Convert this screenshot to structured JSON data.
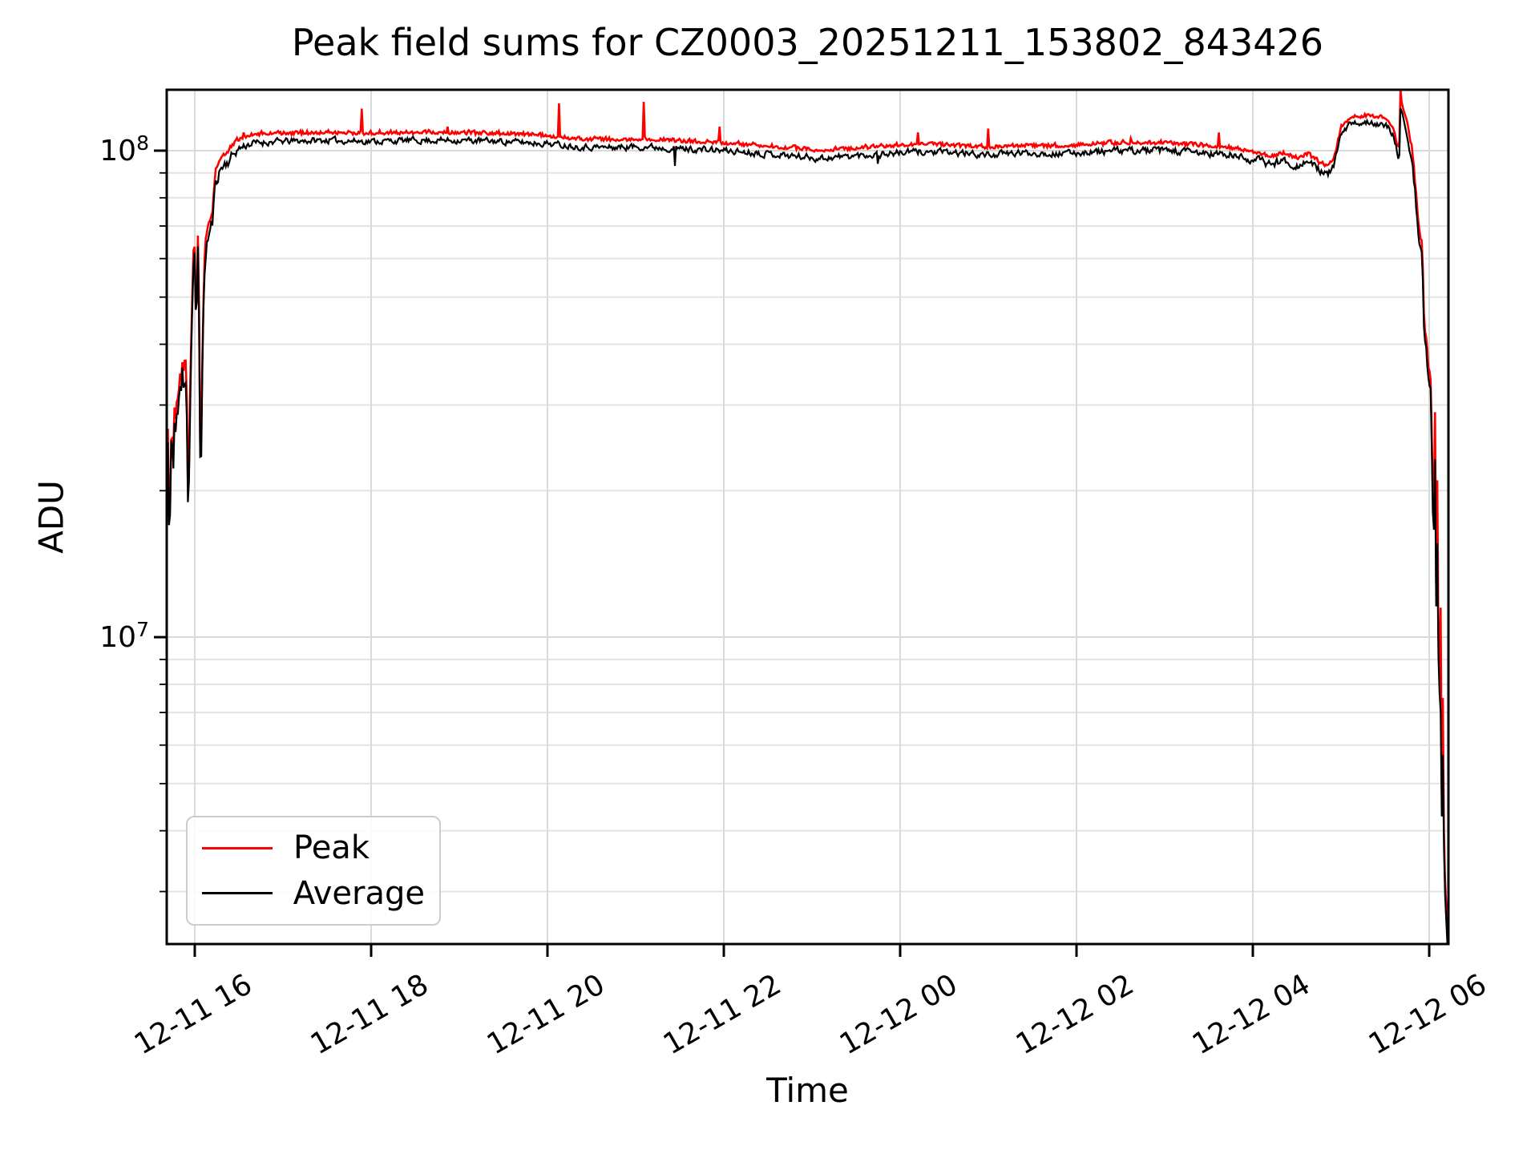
{
  "figure": {
    "title": "Peak field sums for CZ0003_20251211_153802_843426"
  },
  "chart_data": {
    "type": "line",
    "title": "Peak field sums for CZ0003_20251211_153802_843426",
    "xlabel": "Time",
    "ylabel": "ADU",
    "y_scale": "log",
    "grid": "both",
    "x_unit_hours_since": "12-11 16:00",
    "xlim": [
      -0.318,
      14.218
    ],
    "ylim": [
      2340000,
      133400000
    ],
    "x_ticks": [
      {
        "t": 0,
        "label": "12-11 16"
      },
      {
        "t": 2,
        "label": "12-11 18"
      },
      {
        "t": 4,
        "label": "12-11 20"
      },
      {
        "t": 6,
        "label": "12-11 22"
      },
      {
        "t": 8,
        "label": "12-12 00"
      },
      {
        "t": 10,
        "label": "12-12 02"
      },
      {
        "t": 12,
        "label": "12-12 04"
      },
      {
        "t": 14,
        "label": "12-12 06"
      }
    ],
    "y_major_ticks": [
      {
        "value": 10000000.0,
        "base": "10",
        "exp": "7"
      },
      {
        "value": 100000000.0,
        "base": "10",
        "exp": "8"
      }
    ],
    "y_minor_subs": [
      2,
      3,
      4,
      5,
      6,
      7,
      8,
      9
    ],
    "colors": {
      "grid_major": "#d9d9d9",
      "grid_minor": "#e3e3e3",
      "axes": "#000000"
    },
    "legend": {
      "location": "lower left",
      "entries": [
        {
          "name": "Peak",
          "color": "#ff0000"
        },
        {
          "name": "Average",
          "color": "#000000"
        }
      ]
    },
    "baseline_keyframes": [
      [
        -0.318,
        21000000.0
      ],
      [
        -0.3,
        27000000.0
      ],
      [
        -0.292,
        16000000.0
      ],
      [
        -0.285,
        13500000.0
      ],
      [
        -0.275,
        23000000.0
      ],
      [
        -0.26,
        25500000.0
      ],
      [
        -0.245,
        22000000.0
      ],
      [
        -0.23,
        28000000.0
      ],
      [
        -0.215,
        26000000.0
      ],
      [
        -0.2,
        30000000.0
      ],
      [
        -0.185,
        28000000.0
      ],
      [
        -0.17,
        33000000.0
      ],
      [
        -0.155,
        31000000.0
      ],
      [
        -0.14,
        35000000.0
      ],
      [
        -0.125,
        33000000.0
      ],
      [
        -0.11,
        36000000.0
      ],
      [
        -0.095,
        34000000.0
      ],
      [
        -0.085,
        25000000.0
      ],
      [
        -0.072,
        16000000.0
      ],
      [
        -0.06,
        26000000.0
      ],
      [
        -0.045,
        36000000.0
      ],
      [
        -0.03,
        46000000.0
      ],
      [
        -0.018,
        56000000.0
      ],
      [
        -0.008,
        63500000.0
      ],
      [
        0.004,
        56000000.0
      ],
      [
        0.014,
        40000000.0
      ],
      [
        0.022,
        44000000.0
      ],
      [
        0.03,
        59000000.0
      ],
      [
        0.038,
        65000000.0
      ],
      [
        0.048,
        46000000.0
      ],
      [
        0.058,
        26000000.0
      ],
      [
        0.068,
        20000000.0
      ],
      [
        0.08,
        31000000.0
      ],
      [
        0.095,
        43000000.0
      ],
      [
        0.11,
        55000000.0
      ],
      [
        0.125,
        62000000.0
      ],
      [
        0.14,
        65000000.0
      ],
      [
        0.16,
        67000000.0
      ],
      [
        0.18,
        69000000.0
      ],
      [
        0.2,
        71000000.0
      ],
      [
        0.22,
        79000000.0
      ],
      [
        0.235,
        86000000.0
      ],
      [
        0.26,
        89000000.0
      ],
      [
        0.29,
        91500000.0
      ],
      [
        0.33,
        93500000.0
      ],
      [
        0.38,
        95000000.0
      ],
      [
        0.43,
        98000000.0
      ],
      [
        0.5,
        101000000.0
      ],
      [
        0.6,
        103000000.0
      ],
      [
        0.75,
        104000000.0
      ],
      [
        1.0,
        104500000.0
      ],
      [
        1.5,
        105000000.0
      ],
      [
        2.0,
        104500000.0
      ],
      [
        2.5,
        105000000.0
      ],
      [
        3.0,
        105000000.0
      ],
      [
        3.5,
        104500000.0
      ],
      [
        4.0,
        103500000.0
      ],
      [
        4.35,
        102000000.0
      ],
      [
        4.7,
        101500000.0
      ],
      [
        5.1,
        102000000.0
      ],
      [
        5.5,
        101000000.0
      ],
      [
        6.0,
        100000000.0
      ],
      [
        6.4,
        99000000.0
      ],
      [
        6.8,
        97500000.0
      ],
      [
        7.1,
        96500000.0
      ],
      [
        7.45,
        97500000.0
      ],
      [
        7.8,
        98500000.0
      ],
      [
        8.2,
        99500000.0
      ],
      [
        8.6,
        99000000.0
      ],
      [
        9.0,
        98000000.0
      ],
      [
        9.4,
        99000000.0
      ],
      [
        9.8,
        98500000.0
      ],
      [
        10.2,
        99500000.0
      ],
      [
        10.6,
        100000000.0
      ],
      [
        11.0,
        100000000.0
      ],
      [
        11.35,
        99000000.0
      ],
      [
        11.7,
        98000000.0
      ],
      [
        12.0,
        96000000.0
      ],
      [
        12.2,
        94000000.0
      ],
      [
        12.35,
        95500000.0
      ],
      [
        12.5,
        93000000.0
      ],
      [
        12.62,
        95000000.0
      ],
      [
        12.75,
        91500000.0
      ],
      [
        12.85,
        89000000.0
      ],
      [
        12.92,
        93000000.0
      ],
      [
        13.0,
        108000000.0
      ],
      [
        13.1,
        113000000.0
      ],
      [
        13.22,
        114000000.0
      ],
      [
        13.32,
        115000000.0
      ],
      [
        13.42,
        113500000.0
      ],
      [
        13.52,
        112000000.0
      ],
      [
        13.58,
        108500000.0
      ],
      [
        13.63,
        100000000.0
      ],
      [
        13.66,
        96000000.0
      ],
      [
        13.675,
        124000000.0
      ],
      [
        13.7,
        118000000.0
      ],
      [
        13.73,
        113000000.0
      ],
      [
        13.77,
        103000000.0
      ],
      [
        13.8,
        97000000.0
      ],
      [
        13.83,
        85000000.0
      ],
      [
        13.86,
        74000000.0
      ],
      [
        13.885,
        64000000.0
      ],
      [
        13.915,
        61500000.0
      ],
      [
        13.93,
        52000000.0
      ],
      [
        13.945,
        40000000.0
      ],
      [
        13.97,
        38500000.0
      ],
      [
        13.99,
        33500000.0
      ],
      [
        14.015,
        32000000.0
      ],
      [
        14.03,
        24000000.0
      ],
      [
        14.05,
        15000000.0
      ],
      [
        14.065,
        25500000.0
      ],
      [
        14.08,
        11000000.0
      ],
      [
        14.095,
        17000000.0
      ],
      [
        14.11,
        6500000.0
      ],
      [
        14.125,
        9000000.0
      ],
      [
        14.14,
        4200000.0
      ],
      [
        14.155,
        5800000.0
      ],
      [
        14.17,
        3300000.0
      ],
      [
        14.185,
        2700000.0
      ],
      [
        14.2,
        2450000.0
      ],
      [
        14.218,
        2340000.0
      ]
    ],
    "series": [
      {
        "name": "Peak",
        "color": "#ff0000",
        "derived_from": "baseline",
        "log_gap_keyframes": [
          [
            -0.318,
            0.022
          ],
          [
            0.2,
            0.02
          ],
          [
            0.5,
            0.016
          ],
          [
            1.0,
            0.013
          ],
          [
            6.0,
            0.012
          ],
          [
            12.0,
            0.013
          ],
          [
            12.9,
            0.012
          ],
          [
            13.35,
            0.01
          ],
          [
            13.62,
            0.013
          ],
          [
            13.9,
            0.022
          ],
          [
            14.218,
            0.035
          ]
        ],
        "noise_amp_keyframes": [
          [
            -0.318,
            0.02
          ],
          [
            0.5,
            0.012
          ],
          [
            13.6,
            0.012
          ],
          [
            14.0,
            0.02
          ],
          [
            14.218,
            0.03
          ]
        ],
        "noise_seed": 47,
        "spikes": [
          [
            0.56,
            109000000.0
          ],
          [
            1.9,
            122000000.0
          ],
          [
            2.1,
            110000000.0
          ],
          [
            2.87,
            112000000.0
          ],
          [
            4.13,
            125000000.0
          ],
          [
            5.09,
            126000000.0
          ],
          [
            5.95,
            112000000.0
          ],
          [
            8.2,
            109000000.0
          ],
          [
            9.0,
            111000000.0
          ],
          [
            10.61,
            106000000.0
          ],
          [
            11.61,
            109000000.0
          ],
          [
            13.675,
            140000000.0
          ],
          [
            14.065,
            29000000.0
          ],
          [
            14.095,
            21000000.0
          ],
          [
            14.125,
            11500000.0
          ],
          [
            14.155,
            7500000.0
          ]
        ]
      },
      {
        "name": "Average",
        "color": "#000000",
        "derived_from": "baseline",
        "noise_amp_keyframes": [
          [
            -0.318,
            0.042
          ],
          [
            -0.05,
            0.05
          ],
          [
            0.1,
            0.035
          ],
          [
            0.3,
            0.02
          ],
          [
            0.5,
            0.013
          ],
          [
            1.0,
            0.01
          ],
          [
            4.0,
            0.01
          ],
          [
            7.0,
            0.011
          ],
          [
            10.0,
            0.01
          ],
          [
            12.0,
            0.014
          ],
          [
            12.9,
            0.011
          ],
          [
            13.35,
            0.009
          ],
          [
            13.6,
            0.012
          ],
          [
            13.8,
            0.02
          ],
          [
            14.0,
            0.025
          ],
          [
            14.218,
            0.03
          ]
        ],
        "noise_seed": 11,
        "spikes": [
          [
            5.44,
            93000000.0
          ],
          [
            7.75,
            94000000.0
          ]
        ]
      }
    ]
  }
}
